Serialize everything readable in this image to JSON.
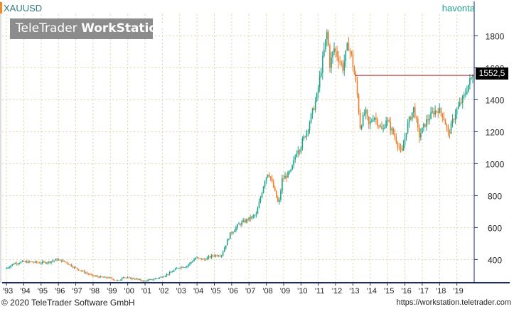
{
  "header": {
    "symbol": "XAUUSD",
    "period": "havonta",
    "watermark_brand": "TeleTrader",
    "watermark_product": "WorkStation"
  },
  "footer": {
    "copyright": "© 2020 TeleTrader Software GmbH",
    "url": "https://workstation.teletrader.com"
  },
  "colors": {
    "up": "#1fa38a",
    "down": "#f07d2a",
    "last_price_line": "#b22222",
    "axis": "#1a2a6c",
    "grid": "#e0d0a8"
  },
  "chart_data": {
    "type": "candlestick",
    "x_tick_labels": [
      "'93",
      "'94",
      "'95",
      "'96",
      "'97",
      "'98",
      "'99",
      "'00",
      "'01",
      "'02",
      "'03",
      "'04",
      "'05",
      "'06",
      "'07",
      "'08",
      "'09",
      "'10",
      "'11",
      "'12",
      "'13",
      "'14",
      "'15",
      "'16",
      "'17",
      "'18",
      "'19"
    ],
    "y_ticks": [
      400,
      600,
      800,
      1000,
      1200,
      1400,
      1600,
      1800
    ],
    "ylim": [
      255,
      1935
    ],
    "xlim": [
      1992.75,
      2020.0
    ],
    "last_price": 1552.5,
    "last_price_label": "1552,5",
    "series": [
      {
        "x": 1993.0,
        "y": 340
      },
      {
        "x": 1993.5,
        "y": 375
      },
      {
        "x": 1994.0,
        "y": 385
      },
      {
        "x": 1994.5,
        "y": 385
      },
      {
        "x": 1995.0,
        "y": 380
      },
      {
        "x": 1995.5,
        "y": 384
      },
      {
        "x": 1996.0,
        "y": 400
      },
      {
        "x": 1996.5,
        "y": 385
      },
      {
        "x": 1997.0,
        "y": 350
      },
      {
        "x": 1997.5,
        "y": 325
      },
      {
        "x": 1998.0,
        "y": 300
      },
      {
        "x": 1998.5,
        "y": 290
      },
      {
        "x": 1999.0,
        "y": 285
      },
      {
        "x": 1999.6,
        "y": 265
      },
      {
        "x": 1999.8,
        "y": 295
      },
      {
        "x": 2000.0,
        "y": 285
      },
      {
        "x": 2000.5,
        "y": 280
      },
      {
        "x": 2001.0,
        "y": 265
      },
      {
        "x": 2001.5,
        "y": 275
      },
      {
        "x": 2002.0,
        "y": 290
      },
      {
        "x": 2002.5,
        "y": 315
      },
      {
        "x": 2003.0,
        "y": 350
      },
      {
        "x": 2003.5,
        "y": 360
      },
      {
        "x": 2004.0,
        "y": 410
      },
      {
        "x": 2004.5,
        "y": 400
      },
      {
        "x": 2005.0,
        "y": 425
      },
      {
        "x": 2005.5,
        "y": 430
      },
      {
        "x": 2006.0,
        "y": 560
      },
      {
        "x": 2006.5,
        "y": 620
      },
      {
        "x": 2007.0,
        "y": 650
      },
      {
        "x": 2007.5,
        "y": 680
      },
      {
        "x": 2008.0,
        "y": 900
      },
      {
        "x": 2008.2,
        "y": 950
      },
      {
        "x": 2008.5,
        "y": 850
      },
      {
        "x": 2008.8,
        "y": 740
      },
      {
        "x": 2009.0,
        "y": 900
      },
      {
        "x": 2009.5,
        "y": 950
      },
      {
        "x": 2009.9,
        "y": 1100
      },
      {
        "x": 2010.0,
        "y": 1090
      },
      {
        "x": 2010.5,
        "y": 1230
      },
      {
        "x": 2011.0,
        "y": 1420
      },
      {
        "x": 2011.6,
        "y": 1830
      },
      {
        "x": 2011.75,
        "y": 1620
      },
      {
        "x": 2012.0,
        "y": 1720
      },
      {
        "x": 2012.5,
        "y": 1600
      },
      {
        "x": 2012.8,
        "y": 1750
      },
      {
        "x": 2013.0,
        "y": 1670
      },
      {
        "x": 2013.3,
        "y": 1470
      },
      {
        "x": 2013.5,
        "y": 1230
      },
      {
        "x": 2013.8,
        "y": 1330
      },
      {
        "x": 2014.0,
        "y": 1240
      },
      {
        "x": 2014.3,
        "y": 1300
      },
      {
        "x": 2014.8,
        "y": 1200
      },
      {
        "x": 2015.0,
        "y": 1280
      },
      {
        "x": 2015.5,
        "y": 1170
      },
      {
        "x": 2015.9,
        "y": 1060
      },
      {
        "x": 2016.2,
        "y": 1230
      },
      {
        "x": 2016.6,
        "y": 1350
      },
      {
        "x": 2016.9,
        "y": 1170
      },
      {
        "x": 2017.3,
        "y": 1260
      },
      {
        "x": 2017.7,
        "y": 1320
      },
      {
        "x": 2018.0,
        "y": 1340
      },
      {
        "x": 2018.3,
        "y": 1300
      },
      {
        "x": 2018.6,
        "y": 1180
      },
      {
        "x": 2019.0,
        "y": 1320
      },
      {
        "x": 2019.5,
        "y": 1420
      },
      {
        "x": 2019.8,
        "y": 1510
      },
      {
        "x": 2020.0,
        "y": 1552.5
      }
    ]
  }
}
